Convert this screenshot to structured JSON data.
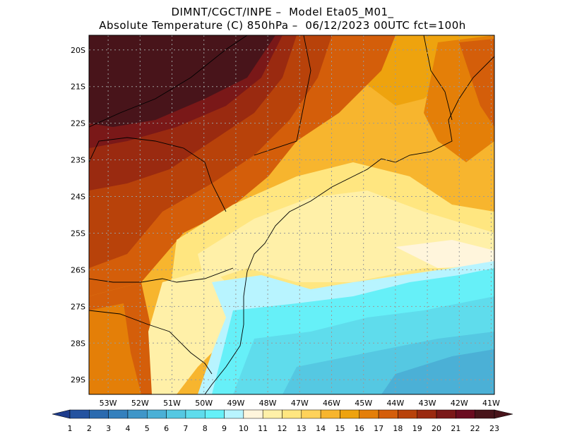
{
  "title": {
    "line1": "DIMNT/CGCT/INPE –  Model Eta05_M01_",
    "line2": "Absolute Temperature (C) 850hPa –  06/12/2023 00UTC fct=100h"
  },
  "map": {
    "lat_labels": [
      "20S",
      "21S",
      "22S",
      "23S",
      "24S",
      "25S",
      "26S",
      "27S",
      "28S",
      "29S"
    ],
    "lon_labels": [
      "53W",
      "52W",
      "51W",
      "50W",
      "49W",
      "48W",
      "47W",
      "46W",
      "45W",
      "44W",
      "43W",
      "42W",
      "41W"
    ],
    "lat_range": [
      -29.4,
      -19.6
    ],
    "lon_range": [
      -53.6,
      -40.9
    ]
  },
  "colorbar": {
    "labels": [
      "1",
      "2",
      "3",
      "4",
      "5",
      "6",
      "7",
      "8",
      "9",
      "10",
      "11",
      "12",
      "13",
      "14",
      "15",
      "16",
      "17",
      "18",
      "19",
      "20",
      "21",
      "22",
      "23"
    ],
    "colors": [
      "#1e3c8c",
      "#2453a0",
      "#2a6aaf",
      "#3480bd",
      "#3f96c8",
      "#4bb0d6",
      "#55c8e2",
      "#5fdcec",
      "#66f0f8",
      "#b8f4ff",
      "#fff5dc",
      "#fff0a8",
      "#ffe680",
      "#ffd25a",
      "#f7b52e",
      "#eea30e",
      "#e47f08",
      "#d45e0a",
      "#b8420a",
      "#9a2a10",
      "#7a1818",
      "#6a0c20",
      "#48141a"
    ]
  }
}
